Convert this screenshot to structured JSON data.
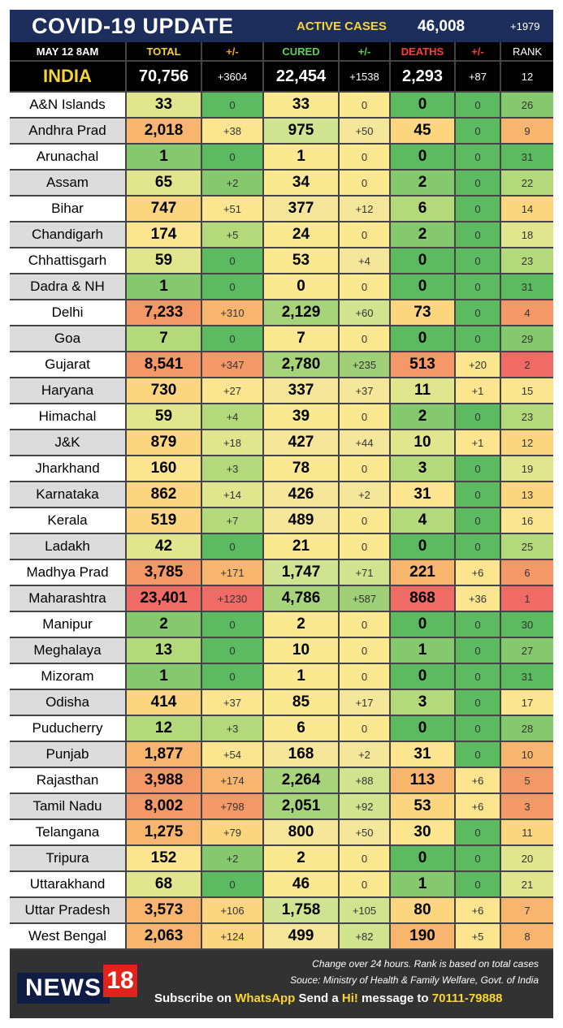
{
  "title": "COVID-19 UPDATE",
  "active": {
    "label": "ACTIVE CASES",
    "value": "46,008",
    "change": "+1979"
  },
  "headers": [
    "MAY 12  8AM",
    "TOTAL",
    "+/-",
    "CURED",
    "+/-",
    "DEATHS",
    "+/-",
    "RANK"
  ],
  "india": {
    "name": "INDIA",
    "total": "70,756",
    "total_change": "+3604",
    "cured": "22,454",
    "cured_change": "+1538",
    "deaths": "2,293",
    "deaths_change": "+87",
    "rank": "12"
  },
  "states": [
    {
      "name": "A&N Islands",
      "total": "33",
      "tc": "0",
      "cured": "33",
      "cc": "0",
      "deaths": "0",
      "dc": "0",
      "rank": "26"
    },
    {
      "name": "Andhra Prad",
      "total": "2,018",
      "tc": "+38",
      "cured": "975",
      "cc": "+50",
      "deaths": "45",
      "dc": "0",
      "rank": "9"
    },
    {
      "name": "Arunachal",
      "total": "1",
      "tc": "0",
      "cured": "1",
      "cc": "0",
      "deaths": "0",
      "dc": "0",
      "rank": "31"
    },
    {
      "name": "Assam",
      "total": "65",
      "tc": "+2",
      "cured": "34",
      "cc": "0",
      "deaths": "2",
      "dc": "0",
      "rank": "22"
    },
    {
      "name": "Bihar",
      "total": "747",
      "tc": "+51",
      "cured": "377",
      "cc": "+12",
      "deaths": "6",
      "dc": "0",
      "rank": "14"
    },
    {
      "name": "Chandigarh",
      "total": "174",
      "tc": "+5",
      "cured": "24",
      "cc": "0",
      "deaths": "2",
      "dc": "0",
      "rank": "18"
    },
    {
      "name": "Chhattisgarh",
      "total": "59",
      "tc": "0",
      "cured": "53",
      "cc": "+4",
      "deaths": "0",
      "dc": "0",
      "rank": "23"
    },
    {
      "name": "Dadra & NH",
      "total": "1",
      "tc": "0",
      "cured": "0",
      "cc": "0",
      "deaths": "0",
      "dc": "0",
      "rank": "31"
    },
    {
      "name": "Delhi",
      "total": "7,233",
      "tc": "+310",
      "cured": "2,129",
      "cc": "+60",
      "deaths": "73",
      "dc": "0",
      "rank": "4"
    },
    {
      "name": "Goa",
      "total": "7",
      "tc": "0",
      "cured": "7",
      "cc": "0",
      "deaths": "0",
      "dc": "0",
      "rank": "29"
    },
    {
      "name": "Gujarat",
      "total": "8,541",
      "tc": "+347",
      "cured": "2,780",
      "cc": "+235",
      "deaths": "513",
      "dc": "+20",
      "rank": "2"
    },
    {
      "name": "Haryana",
      "total": "730",
      "tc": "+27",
      "cured": "337",
      "cc": "+37",
      "deaths": "11",
      "dc": "+1",
      "rank": "15"
    },
    {
      "name": "Himachal",
      "total": "59",
      "tc": "+4",
      "cured": "39",
      "cc": "0",
      "deaths": "2",
      "dc": "0",
      "rank": "23"
    },
    {
      "name": "J&K",
      "total": "879",
      "tc": "+18",
      "cured": "427",
      "cc": "+44",
      "deaths": "10",
      "dc": "+1",
      "rank": "12"
    },
    {
      "name": "Jharkhand",
      "total": "160",
      "tc": "+3",
      "cured": "78",
      "cc": "0",
      "deaths": "3",
      "dc": "0",
      "rank": "19"
    },
    {
      "name": "Karnataka",
      "total": "862",
      "tc": "+14",
      "cured": "426",
      "cc": "+2",
      "deaths": "31",
      "dc": "0",
      "rank": "13"
    },
    {
      "name": "Kerala",
      "total": "519",
      "tc": "+7",
      "cured": "489",
      "cc": "0",
      "deaths": "4",
      "dc": "0",
      "rank": "16"
    },
    {
      "name": "Ladakh",
      "total": "42",
      "tc": "0",
      "cured": "21",
      "cc": "0",
      "deaths": "0",
      "dc": "0",
      "rank": "25"
    },
    {
      "name": "Madhya Prad",
      "total": "3,785",
      "tc": "+171",
      "cured": "1,747",
      "cc": "+71",
      "deaths": "221",
      "dc": "+6",
      "rank": "6"
    },
    {
      "name": "Maharashtra",
      "total": "23,401",
      "tc": "+1230",
      "cured": "4,786",
      "cc": "+587",
      "deaths": "868",
      "dc": "+36",
      "rank": "1"
    },
    {
      "name": "Manipur",
      "total": "2",
      "tc": "0",
      "cured": "2",
      "cc": "0",
      "deaths": "0",
      "dc": "0",
      "rank": "30"
    },
    {
      "name": "Meghalaya",
      "total": "13",
      "tc": "0",
      "cured": "10",
      "cc": "0",
      "deaths": "1",
      "dc": "0",
      "rank": "27"
    },
    {
      "name": "Mizoram",
      "total": "1",
      "tc": "0",
      "cured": "1",
      "cc": "0",
      "deaths": "0",
      "dc": "0",
      "rank": "31"
    },
    {
      "name": "Odisha",
      "total": "414",
      "tc": "+37",
      "cured": "85",
      "cc": "+17",
      "deaths": "3",
      "dc": "0",
      "rank": "17"
    },
    {
      "name": "Puducherry",
      "total": "12",
      "tc": "+3",
      "cured": "6",
      "cc": "0",
      "deaths": "0",
      "dc": "0",
      "rank": "28"
    },
    {
      "name": "Punjab",
      "total": "1,877",
      "tc": "+54",
      "cured": "168",
      "cc": "+2",
      "deaths": "31",
      "dc": "0",
      "rank": "10"
    },
    {
      "name": "Rajasthan",
      "total": "3,988",
      "tc": "+174",
      "cured": "2,264",
      "cc": "+88",
      "deaths": "113",
      "dc": "+6",
      "rank": "5"
    },
    {
      "name": "Tamil Nadu",
      "total": "8,002",
      "tc": "+798",
      "cured": "2,051",
      "cc": "+92",
      "deaths": "53",
      "dc": "+6",
      "rank": "3"
    },
    {
      "name": "Telangana",
      "total": "1,275",
      "tc": "+79",
      "cured": "800",
      "cc": "+50",
      "deaths": "30",
      "dc": "0",
      "rank": "11"
    },
    {
      "name": "Tripura",
      "total": "152",
      "tc": "+2",
      "cured": "2",
      "cc": "0",
      "deaths": "0",
      "dc": "0",
      "rank": "20"
    },
    {
      "name": "Uttarakhand",
      "total": "68",
      "tc": "0",
      "cured": "46",
      "cc": "0",
      "deaths": "1",
      "dc": "0",
      "rank": "21"
    },
    {
      "name": "Uttar Pradesh",
      "total": "3,573",
      "tc": "+106",
      "cured": "1,758",
      "cc": "+105",
      "deaths": "80",
      "dc": "+6",
      "rank": "7"
    },
    {
      "name": "West Bengal",
      "total": "2,063",
      "tc": "+124",
      "cured": "499",
      "cc": "+82",
      "deaths": "190",
      "dc": "+5",
      "rank": "8"
    }
  ],
  "footer": {
    "logo_text": "NEWS",
    "logo_number": "18",
    "note1": "Change over 24 hours. Rank is based on total cases",
    "note2": "Souce: Ministry of Health & Family Welfare, Govt. of India",
    "subscribe_prefix": "Subscribe on ",
    "subscribe_app": "WhatsApp",
    "subscribe_mid": " Send a ",
    "subscribe_hi": "Hi!",
    "subscribe_mid2": " message to ",
    "subscribe_number": "70111-79888"
  },
  "colors": {
    "title_bg": "#1d2e5c",
    "accent_yellow": "#f6d534",
    "green": "#6cc36d",
    "yellow": "#fbe68f",
    "orange": "#f7b56e",
    "red": "#f06a66"
  }
}
